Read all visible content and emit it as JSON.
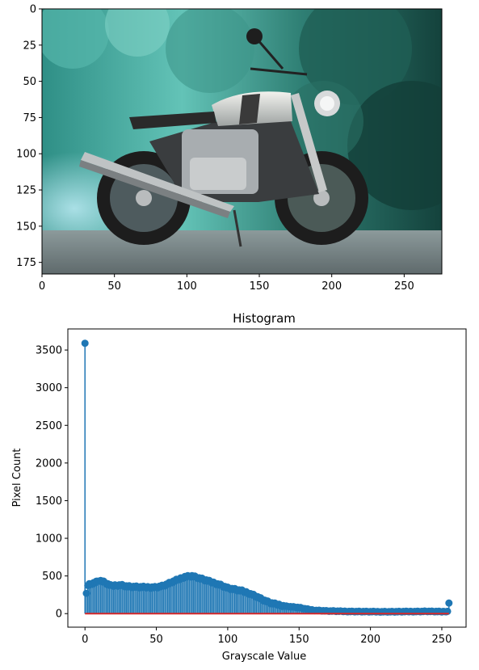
{
  "figure": {
    "background": "#ffffff"
  },
  "chart_data": [
    {
      "type": "image",
      "title": "",
      "xlabel": "",
      "ylabel": "",
      "xlim": [
        0,
        276
      ],
      "ylim": [
        183,
        0
      ],
      "xticks": [
        0,
        50,
        100,
        150,
        200,
        250
      ],
      "yticks": [
        0,
        25,
        50,
        75,
        100,
        125,
        150,
        175
      ],
      "content": "photograph of a cafe racer motorcycle parked on a wet road in front of teal-tinted foliage",
      "colors": {
        "foliage": "#3fa89a",
        "tank": "#d9d9d4",
        "engine": "#a9aeb2",
        "tire": "#2b2b2b",
        "road": "#7f8a8c"
      }
    },
    {
      "type": "stem",
      "title": "Histogram",
      "xlabel": "Grayscale Value",
      "ylabel": "Pixel Count",
      "xlim": [
        -12,
        267
      ],
      "ylim": [
        -180,
        3780
      ],
      "xticks": [
        0,
        50,
        100,
        150,
        200,
        250
      ],
      "yticks": [
        0,
        500,
        1000,
        1500,
        2000,
        2500,
        3000,
        3500
      ],
      "colors": {
        "stem": "#1f77b4",
        "baseline": "#d62728"
      },
      "x_range": [
        0,
        255
      ],
      "values_note_keypoints": [
        [
          0,
          3590
        ],
        [
          1,
          270
        ],
        [
          2,
          380
        ],
        [
          5,
          400
        ],
        [
          8,
          420
        ],
        [
          10,
          440
        ],
        [
          13,
          420
        ],
        [
          18,
          370
        ],
        [
          25,
          380
        ],
        [
          30,
          360
        ],
        [
          40,
          350
        ],
        [
          50,
          350
        ],
        [
          55,
          370
        ],
        [
          60,
          410
        ],
        [
          65,
          450
        ],
        [
          70,
          490
        ],
        [
          75,
          500
        ],
        [
          80,
          470
        ],
        [
          85,
          440
        ],
        [
          90,
          410
        ],
        [
          95,
          380
        ],
        [
          100,
          340
        ],
        [
          110,
          300
        ],
        [
          115,
          270
        ],
        [
          120,
          230
        ],
        [
          125,
          180
        ],
        [
          130,
          140
        ],
        [
          135,
          120
        ],
        [
          140,
          100
        ],
        [
          145,
          90
        ],
        [
          150,
          80
        ],
        [
          155,
          60
        ],
        [
          160,
          45
        ],
        [
          170,
          35
        ],
        [
          180,
          30
        ],
        [
          200,
          25
        ],
        [
          220,
          25
        ],
        [
          240,
          30
        ],
        [
          250,
          25
        ],
        [
          254,
          30
        ],
        [
          255,
          140
        ]
      ]
    }
  ]
}
